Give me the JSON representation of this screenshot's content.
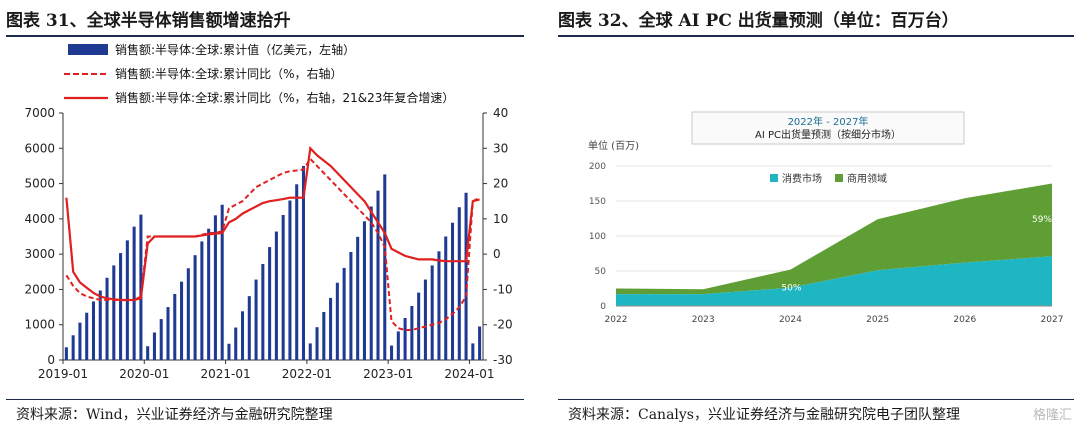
{
  "left": {
    "title": "图表 31、全球半导体销售额增速拾升",
    "source": "资料来源：Wind，兴业证券经济与金融研究院整理",
    "chart_data": {
      "type": "bar",
      "x_tick_labels": [
        "2019-01",
        "2020-01",
        "2021-01",
        "2022-01",
        "2023-01",
        "2024-01"
      ],
      "y_left": {
        "ylim": [
          0,
          7000
        ],
        "ticks": [
          "0",
          "1000",
          "2000",
          "3000",
          "4000",
          "5000",
          "6000",
          "7000"
        ]
      },
      "y_right": {
        "ylim": [
          -30,
          40
        ],
        "ticks": [
          "-30",
          "-20",
          "-10",
          "0",
          "10",
          "20",
          "30",
          "40"
        ]
      },
      "legend_position": "top-left",
      "series": [
        {
          "name": "销售额:半导体:全球:累计值（亿美元，左轴）",
          "type": "bar",
          "axis": "left",
          "color": "#1f3a93",
          "values": [
            360,
            700,
            1060,
            1340,
            1660,
            1970,
            2330,
            2680,
            3030,
            3390,
            3780,
            4120,
            390,
            780,
            1160,
            1500,
            1870,
            2220,
            2600,
            2970,
            3360,
            3720,
            4100,
            4400,
            460,
            920,
            1380,
            1810,
            2280,
            2720,
            3200,
            3640,
            4110,
            4520,
            4980,
            5500,
            470,
            930,
            1360,
            1760,
            2190,
            2610,
            3060,
            3490,
            3930,
            4350,
            4800,
            5260,
            410,
            810,
            1190,
            1530,
            1910,
            2280,
            2680,
            3080,
            3500,
            3890,
            4330,
            4740,
            470,
            950
          ]
        },
        {
          "name": "销售额:半导体:全球:累计同比（%，右轴）",
          "type": "line-dashed",
          "axis": "right",
          "color": "#e02020",
          "values": [
            -6,
            -9,
            -11,
            -12,
            -12.5,
            -13,
            -13,
            -13,
            -13,
            -13,
            -13,
            -12,
            5,
            5,
            5,
            5,
            5,
            5,
            5,
            5,
            5.5,
            6,
            6,
            6.5,
            13,
            14,
            15,
            17,
            19,
            20,
            21,
            22,
            23,
            23.5,
            23.7,
            24,
            27,
            25,
            23,
            21,
            19,
            17,
            15,
            13,
            11,
            9,
            6,
            2,
            -19,
            -21,
            -21.5,
            -21.5,
            -21,
            -20.5,
            -20,
            -19.5,
            -18.5,
            -17,
            -15,
            -12,
            15,
            16
          ]
        },
        {
          "name": "销售额:半导体:全球:累计同比（%，右轴，21&23年复合增速）",
          "type": "line",
          "axis": "right",
          "color": "#e02020",
          "values": [
            16,
            -5,
            -8,
            -9.5,
            -11,
            -12,
            -12.5,
            -12.8,
            -13,
            -13,
            -13,
            -12.5,
            3,
            5,
            5,
            5,
            5,
            5,
            5,
            5,
            5.3,
            5.6,
            5.8,
            6,
            9,
            10,
            11.5,
            12.5,
            13.5,
            14.5,
            15,
            15.3,
            15.6,
            16,
            16,
            16,
            30,
            28,
            26.5,
            25,
            23,
            21,
            19,
            17,
            15,
            12,
            9,
            6,
            1.5,
            0.5,
            -0.5,
            -1,
            -1.5,
            -1.5,
            -1.5,
            -1.8,
            -2,
            -2,
            -2,
            -2,
            15,
            15.5
          ]
        }
      ]
    }
  },
  "right": {
    "title": "图表 32、全球 AI PC 出货量预测（单位：百万台）",
    "source": "资料来源：Canalys，兴业证券经济与金融研究院电子团队整理",
    "watermark": "格隆汇",
    "chart_data": {
      "type": "area",
      "title_box": [
        "2022年 - 2027年",
        "AI PC出货量预测（按细分市场）"
      ],
      "ylabel": "单位 (百万)",
      "x": [
        "2022",
        "2023",
        "2024",
        "2025",
        "2026",
        "2027"
      ],
      "ylim": [
        0,
        200
      ],
      "y_ticks": [
        "0",
        "50",
        "100",
        "150",
        "200"
      ],
      "legend_position": "top-center",
      "series": [
        {
          "name": "消费市场",
          "color": "#1fb6c4",
          "values": [
            17,
            17,
            26,
            51,
            62,
            71
          ]
        },
        {
          "name": "商用领域",
          "color": "#5f9e35",
          "values": [
            8,
            7,
            26,
            73,
            92,
            104
          ]
        }
      ],
      "annotations": [
        "50%",
        "59%"
      ]
    }
  }
}
